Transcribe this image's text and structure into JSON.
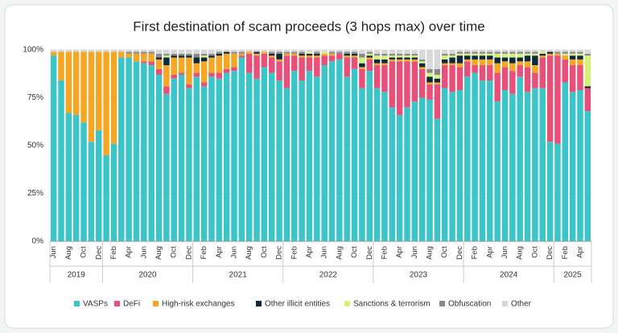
{
  "chart_data": {
    "type": "stacked_bar",
    "title": "First destination of scam proceeds (3 hops max) over time",
    "categories": [
      "Jun",
      null,
      "Aug",
      null,
      "Oct",
      null,
      "Dec",
      null,
      "Feb",
      null,
      "Apr",
      null,
      "Jun",
      null,
      "Aug",
      null,
      "Oct",
      null,
      "Dec",
      null,
      "Feb",
      null,
      "Apr",
      null,
      "Jun",
      null,
      "Aug",
      null,
      "Oct",
      null,
      "Dec",
      null,
      "Feb",
      null,
      "Apr",
      null,
      "Jun",
      null,
      "Aug",
      null,
      "Oct",
      null,
      "Dec",
      null,
      "Feb",
      null,
      "Apr",
      null,
      "Jun",
      null,
      "Aug",
      null,
      "Oct",
      null,
      "Dec",
      null,
      "Feb",
      null,
      "Apr",
      null,
      "Jun",
      null,
      "Aug",
      null,
      "Oct",
      null,
      "Dec",
      null,
      "Feb",
      null,
      "Apr",
      null
    ],
    "x_groups": [
      "2019",
      "2020",
      "2021",
      "2022",
      "2023",
      "2024",
      "2025"
    ],
    "ylim": [
      0,
      100
    ],
    "yticks": [
      {
        "value": 0,
        "label": "0%"
      },
      {
        "value": 25,
        "label": "25%"
      },
      {
        "value": 50,
        "label": "50%"
      },
      {
        "value": 75,
        "label": "75%"
      },
      {
        "value": 100,
        "label": "100%"
      }
    ],
    "grid": true,
    "legend": "bottom",
    "series": [
      {
        "name": "VASPs",
        "color": "#3cc5c9",
        "values": [
          97,
          84,
          67,
          66,
          62,
          52,
          58,
          45,
          51,
          96,
          96,
          94,
          93,
          92,
          87,
          77,
          85,
          87,
          80,
          86,
          81,
          86,
          85,
          88,
          89,
          96,
          88,
          85,
          91,
          88,
          84,
          80,
          89,
          84,
          89,
          86,
          92,
          94,
          95,
          86,
          90,
          80,
          89,
          80,
          78,
          70,
          66,
          70,
          73,
          75,
          74,
          64,
          80,
          78,
          79,
          86,
          88,
          84,
          84,
          73,
          79,
          77,
          86,
          78,
          80,
          80,
          52,
          51,
          83,
          78,
          79,
          68
        ]
      },
      {
        "name": "DeFi",
        "color": "#e8507a",
        "values": [
          0,
          0,
          0,
          0,
          0,
          0,
          0,
          0,
          0,
          0,
          0,
          0,
          1,
          2,
          3,
          4,
          2,
          1,
          2,
          2,
          2,
          2,
          3,
          2,
          2,
          1,
          10,
          12,
          7,
          8,
          10,
          17,
          8,
          12,
          7,
          10,
          5,
          3,
          3,
          10,
          6,
          10,
          6,
          12,
          14,
          24,
          28,
          24,
          21,
          15,
          8,
          18,
          12,
          14,
          12,
          8,
          4,
          8,
          8,
          15,
          12,
          12,
          6,
          13,
          8,
          16,
          45,
          46,
          12,
          14,
          13,
          12
        ]
      },
      {
        "name": "High-risk exchanges",
        "color": "#f5a623",
        "values": [
          2,
          15,
          32,
          33,
          37,
          47,
          41,
          54,
          48,
          3,
          2,
          4,
          4,
          4,
          5,
          11,
          9,
          8,
          14,
          5,
          11,
          8,
          9,
          8,
          7,
          1,
          1,
          1,
          1,
          1,
          1,
          1,
          1,
          1,
          1,
          1,
          1,
          1,
          0,
          1,
          1,
          1,
          1,
          1,
          1,
          1,
          1,
          1,
          1,
          1,
          1,
          1,
          1,
          1,
          2,
          1,
          3,
          3,
          3,
          5,
          3,
          4,
          2,
          3,
          4,
          1,
          1,
          1,
          2,
          3,
          3,
          0
        ]
      },
      {
        "name": "Other illicit entities",
        "color": "#0d2a3a",
        "values": [
          0,
          0,
          0,
          0,
          0,
          0,
          0,
          0,
          0,
          0,
          0,
          0,
          0,
          0,
          1,
          4,
          1,
          1,
          1,
          3,
          2,
          1,
          1,
          1,
          0,
          0,
          0,
          1,
          0,
          1,
          3,
          0,
          0,
          1,
          1,
          1,
          0,
          0,
          0,
          1,
          1,
          2,
          1,
          2,
          2,
          1,
          1,
          1,
          1,
          2,
          3,
          2,
          2,
          3,
          4,
          2,
          2,
          2,
          2,
          3,
          2,
          3,
          2,
          3,
          5,
          1,
          1,
          0,
          0,
          2,
          2,
          1
        ]
      },
      {
        "name": "Sanctions & terrorism",
        "color": "#d4f27a",
        "values": [
          0,
          0,
          0,
          0,
          0,
          0,
          0,
          0,
          0,
          0,
          0,
          0,
          0,
          0,
          0,
          1,
          0,
          0,
          0,
          0,
          1,
          0,
          0,
          0,
          0,
          0,
          0,
          0,
          0,
          0,
          0,
          0,
          0,
          0,
          1,
          0,
          1,
          0,
          0,
          0,
          0,
          3,
          1,
          2,
          2,
          1,
          1,
          1,
          1,
          1,
          2,
          2,
          2,
          1,
          1,
          1,
          1,
          1,
          1,
          2,
          2,
          2,
          2,
          1,
          1,
          1,
          0,
          0,
          1,
          1,
          1,
          16
        ]
      },
      {
        "name": "Obfuscation",
        "color": "#8a8a8a",
        "values": [
          0,
          0,
          0,
          0,
          0,
          0,
          0,
          0,
          0,
          0,
          1,
          1,
          1,
          1,
          2,
          1,
          1,
          1,
          1,
          2,
          1,
          1,
          1,
          0,
          1,
          1,
          0,
          0,
          0,
          1,
          1,
          1,
          1,
          1,
          0,
          1,
          0,
          1,
          1,
          1,
          1,
          2,
          1,
          1,
          1,
          1,
          1,
          1,
          1,
          1,
          2,
          3,
          1,
          1,
          1,
          1,
          1,
          1,
          1,
          1,
          1,
          1,
          1,
          1,
          1,
          0,
          0,
          1,
          1,
          1,
          1,
          1
        ]
      },
      {
        "name": "Other",
        "color": "#d8d8d8",
        "values": [
          1,
          1,
          1,
          1,
          1,
          1,
          1,
          1,
          1,
          1,
          1,
          1,
          1,
          1,
          2,
          2,
          2,
          2,
          2,
          2,
          2,
          2,
          1,
          1,
          1,
          1,
          1,
          1,
          1,
          1,
          1,
          1,
          1,
          1,
          1,
          1,
          1,
          1,
          1,
          1,
          1,
          2,
          1,
          2,
          2,
          2,
          2,
          2,
          2,
          5,
          10,
          10,
          2,
          2,
          1,
          1,
          1,
          1,
          1,
          1,
          1,
          1,
          1,
          1,
          1,
          1,
          1,
          1,
          1,
          1,
          1,
          2
        ]
      }
    ]
  }
}
